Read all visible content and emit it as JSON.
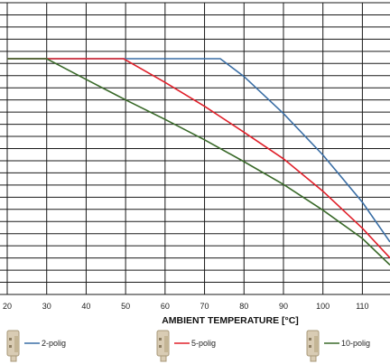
{
  "chart_data": {
    "type": "line",
    "title": "",
    "xlabel": "AMBIENT TEMPERATURE [°C]",
    "ylabel": "",
    "xlim": [
      20,
      117
    ],
    "x_ticks": [
      20,
      30,
      40,
      50,
      60,
      70,
      80,
      90,
      100,
      110
    ],
    "x_tick_labels": [
      "20",
      "30",
      "40",
      "50",
      "60",
      "70",
      "80",
      "90",
      "100",
      "110"
    ],
    "ylim": [
      0,
      1
    ],
    "grid": true,
    "legend_position": "bottom",
    "series": [
      {
        "name": "2-polig",
        "color": "#3a6ea5",
        "points": [
          [
            20,
            0.808
          ],
          [
            30,
            0.808
          ],
          [
            40,
            0.808
          ],
          [
            50,
            0.808
          ],
          [
            60,
            0.808
          ],
          [
            70,
            0.808
          ],
          [
            74,
            0.808
          ],
          [
            80,
            0.747
          ],
          [
            90,
            0.62
          ],
          [
            100,
            0.478
          ],
          [
            110,
            0.316
          ],
          [
            117,
            0.18
          ]
        ]
      },
      {
        "name": "5-polig",
        "color": "#e0202a",
        "points": [
          [
            20,
            0.808
          ],
          [
            30,
            0.808
          ],
          [
            40,
            0.808
          ],
          [
            49.5,
            0.808
          ],
          [
            60,
            0.727
          ],
          [
            70,
            0.645
          ],
          [
            80,
            0.556
          ],
          [
            90,
            0.465
          ],
          [
            100,
            0.354
          ],
          [
            110,
            0.227
          ],
          [
            117,
            0.125
          ]
        ]
      },
      {
        "name": "10-polig",
        "color": "#3a6a2a",
        "points": [
          [
            20,
            0.808
          ],
          [
            30,
            0.808
          ],
          [
            40,
            0.737
          ],
          [
            50,
            0.667
          ],
          [
            60,
            0.6
          ],
          [
            70,
            0.53
          ],
          [
            80,
            0.455
          ],
          [
            90,
            0.377
          ],
          [
            100,
            0.289
          ],
          [
            110,
            0.192
          ],
          [
            117,
            0.101
          ]
        ]
      }
    ]
  },
  "legend": [
    {
      "label": "2-polig",
      "color": "#3a6ea5"
    },
    {
      "label": "5-polig",
      "color": "#e0202a"
    },
    {
      "label": "10-polig",
      "color": "#3a6a2a"
    }
  ]
}
